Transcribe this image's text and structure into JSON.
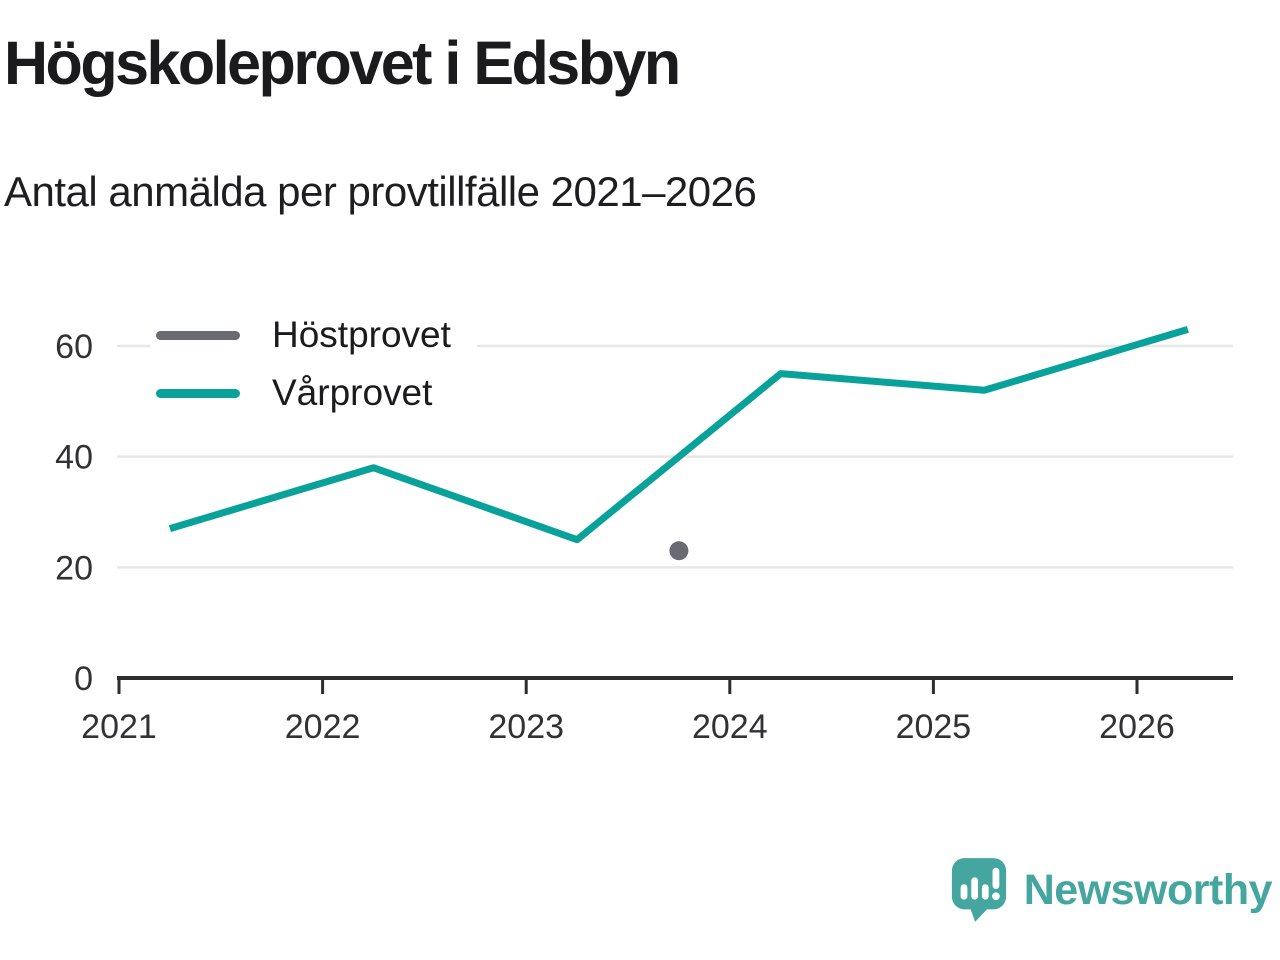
{
  "header": {
    "title": "Högskoleprovet i Edsbyn",
    "subtitle": "Antal anmälda per provtillfälle 2021–2026"
  },
  "colors": {
    "autumn_series": "#696a72",
    "spring_series": "#09a29a",
    "axis": "#2e2e30",
    "gridline": "#e7e7e7",
    "tick_label": "#323234",
    "brand": "#45a6a0"
  },
  "chart_data": {
    "type": "line",
    "title": "Högskoleprovet i Edsbyn",
    "subtitle": "Antal anmälda per provtillfälle 2021–2026",
    "xlabel": "",
    "ylabel": "",
    "x_ticks": [
      2021,
      2022,
      2023,
      2024,
      2025,
      2026
    ],
    "y_ticks": [
      0,
      20,
      40,
      60
    ],
    "ylim": [
      0,
      68
    ],
    "xlim": [
      2020.99,
      2026.48
    ],
    "grid": "horizontal",
    "legend_position": "top-left-inside",
    "series": [
      {
        "name": "Höstprovet",
        "type": "scatter",
        "color_key": "autumn_series",
        "x": [
          2023.75
        ],
        "values": [
          23
        ]
      },
      {
        "name": "Vårprovet",
        "type": "line",
        "color_key": "spring_series",
        "x": [
          2021.25,
          2022.25,
          2023.25,
          2024.25,
          2025.25,
          2026.25
        ],
        "values": [
          27,
          38,
          25,
          55,
          52,
          63
        ]
      }
    ]
  },
  "footer": {
    "brand_name": "Newsworthy"
  }
}
